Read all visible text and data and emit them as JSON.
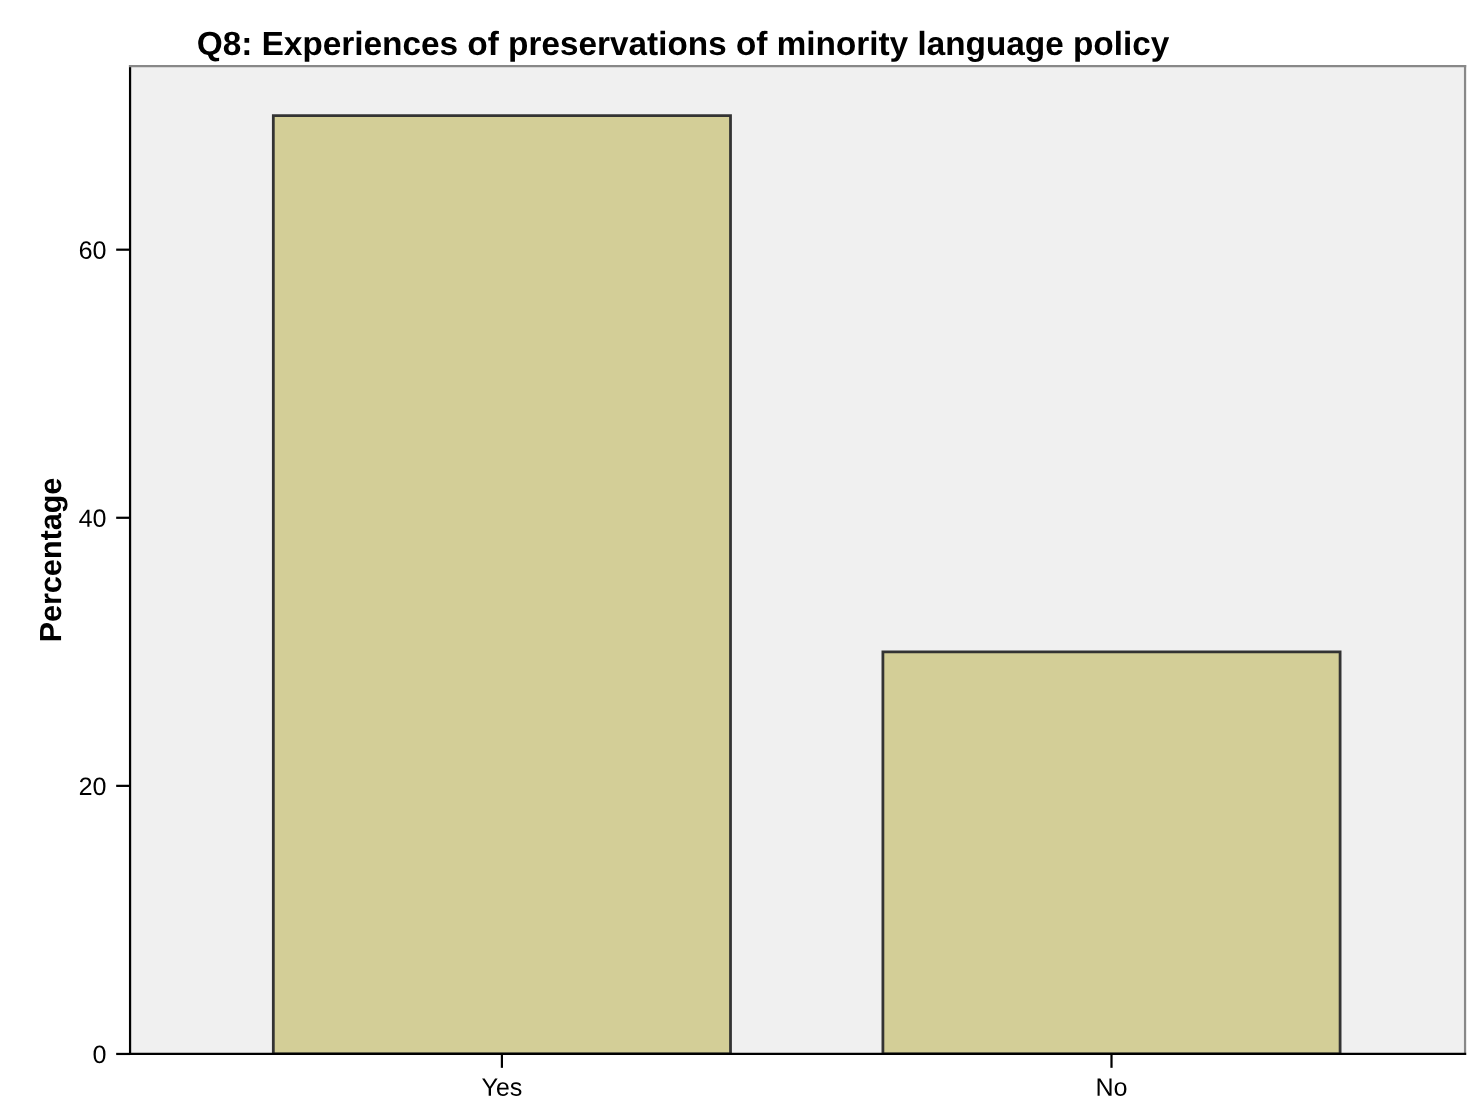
{
  "chart_data": {
    "type": "bar",
    "title": "Q8: Experiences of preservations of minority language policy",
    "ylabel": "Percentage",
    "categories": [
      "Yes",
      "No"
    ],
    "values": [
      70,
      30
    ],
    "color": "#d3ce97",
    "ylim": [
      0,
      73.7
    ],
    "yticks": [
      0,
      20,
      40,
      60
    ],
    "grid": false
  }
}
